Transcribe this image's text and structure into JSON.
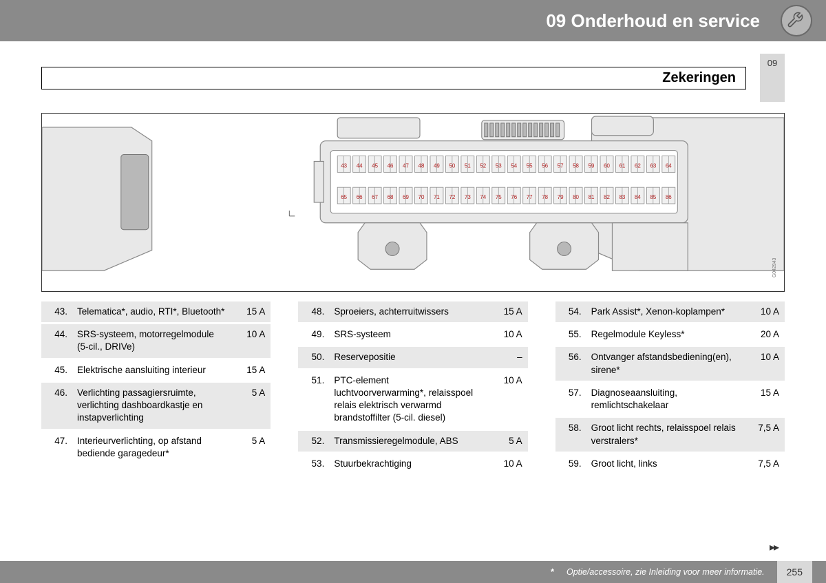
{
  "header": {
    "title": "09 Onderhoud en service"
  },
  "subheader": {
    "label": "Zekeringen",
    "tab": "09"
  },
  "diagram": {
    "fuse_top_start": 43,
    "fuse_top_end": 64,
    "fuse_bot_start": 65,
    "fuse_bot_end": 86,
    "code": "G042943",
    "colors": {
      "panel": "#e8e8e8",
      "stroke": "#8a8a8a",
      "dark": "#b8b8b8",
      "num": "#b22222"
    }
  },
  "columns": [
    [
      {
        "n": "43.",
        "d": "Telematica*, audio, RTI*, Bluetooth*",
        "a": "15 A",
        "s": true
      },
      {
        "n": "44.",
        "d": "SRS-systeem, motorregelmodule (5-cil., DRIVe)",
        "a": "10 A",
        "s": true
      },
      {
        "n": "45.",
        "d": "Elektrische aansluiting interieur",
        "a": "15 A",
        "s": false
      },
      {
        "n": "46.",
        "d": "Verlichting passagiersruimte, verlichting dashboardkastje en instapverlichting",
        "a": "5 A",
        "s": true
      },
      {
        "n": "47.",
        "d": "Interieurverlichting, op afstand bediende garagedeur*",
        "a": "5 A",
        "s": false
      }
    ],
    [
      {
        "n": "48.",
        "d": "Sproeiers, achterruitwissers",
        "a": "15 A",
        "s": true
      },
      {
        "n": "49.",
        "d": "SRS-systeem",
        "a": "10 A",
        "s": false
      },
      {
        "n": "50.",
        "d": "Reservepositie",
        "a": "–",
        "s": true
      },
      {
        "n": "51.",
        "d": "PTC-element luchtvoorverwarming*, relaisspoel relais elektrisch verwarmd brandstoffilter (5-cil. diesel)",
        "a": "10 A",
        "s": false
      },
      {
        "n": "52.",
        "d": "Transmissieregelmodule, ABS",
        "a": "5 A",
        "s": true
      },
      {
        "n": "53.",
        "d": "Stuurbekrachtiging",
        "a": "10 A",
        "s": false
      }
    ],
    [
      {
        "n": "54.",
        "d": "Park Assist*, Xenon-koplampen*",
        "a": "10 A",
        "s": true
      },
      {
        "n": "55.",
        "d": "Regelmodule Keyless*",
        "a": "20 A",
        "s": false
      },
      {
        "n": "56.",
        "d": "Ontvanger afstandsbediening(en), sirene*",
        "a": "10 A",
        "s": true
      },
      {
        "n": "57.",
        "d": "Diagnoseaansluiting, remlichtschakelaar",
        "a": "15 A",
        "s": false
      },
      {
        "n": "58.",
        "d": "Groot licht rechts, relaisspoel relais verstralers*",
        "a": "7,5 A",
        "s": true
      },
      {
        "n": "59.",
        "d": "Groot licht, links",
        "a": "7,5 A",
        "s": false
      }
    ]
  ],
  "footer": {
    "note_star": "*",
    "note": "Optie/accessoire, zie Inleiding voor meer informatie.",
    "page": "255"
  }
}
